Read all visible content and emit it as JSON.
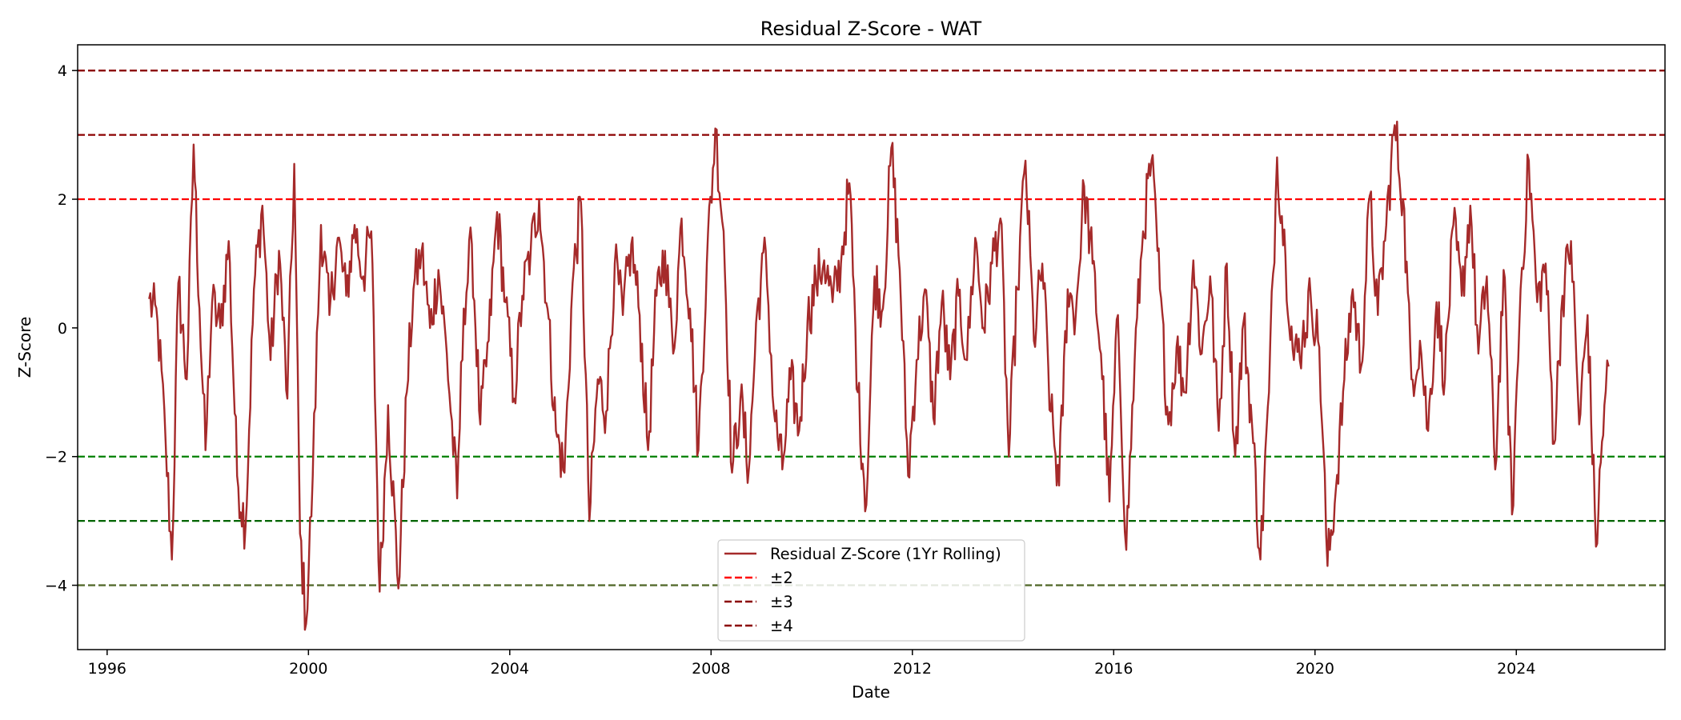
{
  "chart_data": {
    "type": "line",
    "title": "Residual Z-Score - WAT",
    "xlabel": "Date",
    "ylabel": "Z-Score",
    "xlim": [
      "1995-06-01",
      "2026-12-15"
    ],
    "ylim": [
      -5.0,
      4.4
    ],
    "x_ticks": [
      {
        "date": "1996-01-01",
        "label": "1996"
      },
      {
        "date": "2000-01-01",
        "label": "2000"
      },
      {
        "date": "2004-01-01",
        "label": "2004"
      },
      {
        "date": "2008-01-01",
        "label": "2008"
      },
      {
        "date": "2012-01-01",
        "label": "2012"
      },
      {
        "date": "2016-01-01",
        "label": "2016"
      },
      {
        "date": "2020-01-01",
        "label": "2020"
      },
      {
        "date": "2024-01-01",
        "label": "2024"
      }
    ],
    "y_ticks": [
      {
        "value": 4,
        "label": "4"
      },
      {
        "value": 2,
        "label": "2"
      },
      {
        "value": 0,
        "label": "0"
      },
      {
        "value": -2,
        "label": "−2"
      },
      {
        "value": -4,
        "label": "−4"
      }
    ],
    "grid": false,
    "legend_position": "lower-center",
    "threshold_lines": [
      {
        "value": 2,
        "color": "#ff0000",
        "legend": "±2"
      },
      {
        "value": 3,
        "color": "#8b0000",
        "legend": "±3"
      },
      {
        "value": 4,
        "color": "#8b0000",
        "legend": "±4"
      },
      {
        "value": -2,
        "color": "#008000"
      },
      {
        "value": -3,
        "color": "#006400"
      },
      {
        "value": -4,
        "color": "#556b2f"
      }
    ],
    "series": [
      {
        "name": "Residual Z-Score (1Yr Rolling)",
        "color": "#a52a2a",
        "points": [
          [
            "1996-11-01",
            0.45
          ],
          [
            "1997-01-01",
            0.1
          ],
          [
            "1997-03-01",
            -1.8
          ],
          [
            "1997-04-15",
            -3.6
          ],
          [
            "1997-06-01",
            0.7
          ],
          [
            "1997-08-01",
            -0.8
          ],
          [
            "1997-09-20",
            2.85
          ],
          [
            "1997-11-01",
            0.3
          ],
          [
            "1997-12-15",
            -1.9
          ],
          [
            "1998-02-01",
            0.4
          ],
          [
            "1998-04-01",
            0.0
          ],
          [
            "1998-06-01",
            1.35
          ],
          [
            "1998-08-01",
            -2.3
          ],
          [
            "1998-10-01",
            -3.1
          ],
          [
            "1998-12-01",
            0.6
          ],
          [
            "1999-02-01",
            1.9
          ],
          [
            "1999-04-01",
            -0.5
          ],
          [
            "1999-06-01",
            1.2
          ],
          [
            "1999-08-01",
            -1.1
          ],
          [
            "1999-09-20",
            2.55
          ],
          [
            "1999-11-01",
            -3.2
          ],
          [
            "1999-12-15",
            -4.6
          ],
          [
            "2000-02-01",
            -2.3
          ],
          [
            "2000-04-01",
            1.6
          ],
          [
            "2000-06-01",
            0.2
          ],
          [
            "2000-08-01",
            1.4
          ],
          [
            "2000-10-01",
            0.5
          ],
          [
            "2000-12-01",
            1.6
          ],
          [
            "2001-02-01",
            0.8
          ],
          [
            "2001-04-01",
            1.5
          ],
          [
            "2001-06-01",
            -4.1
          ],
          [
            "2001-08-01",
            -1.2
          ],
          [
            "2001-10-15",
            -4.05
          ],
          [
            "2001-12-15",
            -1.0
          ],
          [
            "2002-02-01",
            0.6
          ],
          [
            "2002-04-01",
            1.2
          ],
          [
            "2002-06-01",
            0.0
          ],
          [
            "2002-08-01",
            0.9
          ],
          [
            "2002-10-01",
            -0.4
          ],
          [
            "2002-12-15",
            -2.65
          ],
          [
            "2003-02-01",
            0.3
          ],
          [
            "2003-04-01",
            1.3
          ],
          [
            "2003-06-01",
            -1.5
          ],
          [
            "2003-08-01",
            -0.2
          ],
          [
            "2003-10-01",
            1.8
          ],
          [
            "2003-12-01",
            0.4
          ],
          [
            "2004-02-01",
            -1.1
          ],
          [
            "2004-04-01",
            0.5
          ],
          [
            "2004-06-01",
            1.2
          ],
          [
            "2004-08-01",
            2.0
          ],
          [
            "2004-10-01",
            0.3
          ],
          [
            "2004-12-01",
            -1.6
          ],
          [
            "2005-02-01",
            -2.25
          ],
          [
            "2005-04-01",
            0.7
          ],
          [
            "2005-06-01",
            1.95
          ],
          [
            "2005-08-01",
            -3.0
          ],
          [
            "2005-10-01",
            -0.8
          ],
          [
            "2005-12-01",
            -1.3
          ],
          [
            "2006-02-01",
            1.0
          ],
          [
            "2006-04-01",
            0.2
          ],
          [
            "2006-06-01",
            1.3
          ],
          [
            "2006-08-01",
            0.2
          ],
          [
            "2006-10-01",
            -1.9
          ],
          [
            "2006-12-01",
            0.5
          ],
          [
            "2007-02-01",
            1.2
          ],
          [
            "2007-04-01",
            -0.4
          ],
          [
            "2007-06-01",
            1.7
          ],
          [
            "2007-08-01",
            0.3
          ],
          [
            "2007-10-01",
            -1.9
          ],
          [
            "2007-12-01",
            1.0
          ],
          [
            "2008-02-01",
            3.1
          ],
          [
            "2008-04-01",
            1.5
          ],
          [
            "2008-06-01",
            -2.25
          ],
          [
            "2008-08-01",
            -1.1
          ],
          [
            "2008-10-01",
            -2.2
          ],
          [
            "2008-12-01",
            0.3
          ],
          [
            "2009-02-01",
            1.2
          ],
          [
            "2009-04-01",
            -1.3
          ],
          [
            "2009-06-01",
            -2.2
          ],
          [
            "2009-08-01",
            -0.8
          ],
          [
            "2009-10-01",
            -1.6
          ],
          [
            "2009-12-01",
            0.1
          ],
          [
            "2010-02-01",
            0.7
          ],
          [
            "2010-04-01",
            1.05
          ],
          [
            "2010-06-01",
            0.4
          ],
          [
            "2010-08-01",
            1.0
          ],
          [
            "2010-10-01",
            2.25
          ],
          [
            "2010-12-01",
            -1.0
          ],
          [
            "2011-02-01",
            -2.75
          ],
          [
            "2011-04-01",
            0.8
          ],
          [
            "2011-06-01",
            0.3
          ],
          [
            "2011-08-01",
            2.8
          ],
          [
            "2011-10-01",
            0.9
          ],
          [
            "2011-12-01",
            -2.3
          ],
          [
            "2012-02-01",
            -0.5
          ],
          [
            "2012-04-01",
            0.6
          ],
          [
            "2012-06-01",
            -1.4
          ],
          [
            "2012-08-01",
            0.4
          ],
          [
            "2012-10-01",
            -0.8
          ],
          [
            "2012-12-01",
            0.5
          ],
          [
            "2013-02-01",
            -0.5
          ],
          [
            "2013-04-01",
            1.4
          ],
          [
            "2013-06-01",
            0.0
          ],
          [
            "2013-08-01",
            1.0
          ],
          [
            "2013-10-01",
            1.7
          ],
          [
            "2013-12-01",
            -2.0
          ],
          [
            "2014-02-01",
            0.6
          ],
          [
            "2014-04-01",
            2.6
          ],
          [
            "2014-06-01",
            -0.2
          ],
          [
            "2014-08-01",
            1.0
          ],
          [
            "2014-10-01",
            -1.3
          ],
          [
            "2014-12-01",
            -2.45
          ],
          [
            "2015-02-01",
            0.6
          ],
          [
            "2015-04-01",
            0.2
          ],
          [
            "2015-06-01",
            2.2
          ],
          [
            "2015-08-01",
            1.0
          ],
          [
            "2015-10-01",
            -0.4
          ],
          [
            "2015-12-01",
            -2.7
          ],
          [
            "2016-02-01",
            0.2
          ],
          [
            "2016-04-01",
            -3.45
          ],
          [
            "2016-06-01",
            -0.5
          ],
          [
            "2016-08-01",
            1.5
          ],
          [
            "2016-10-01",
            2.6
          ],
          [
            "2016-12-01",
            0.6
          ],
          [
            "2017-02-01",
            -1.5
          ],
          [
            "2017-04-01",
            -0.3
          ],
          [
            "2017-06-01",
            -1.0
          ],
          [
            "2017-08-01",
            1.05
          ],
          [
            "2017-10-01",
            -0.4
          ],
          [
            "2017-12-01",
            0.8
          ],
          [
            "2018-02-01",
            -1.6
          ],
          [
            "2018-04-01",
            1.0
          ],
          [
            "2018-06-01",
            -2.0
          ],
          [
            "2018-08-01",
            0.1
          ],
          [
            "2018-10-01",
            -1.5
          ],
          [
            "2018-12-01",
            -3.6
          ],
          [
            "2019-02-01",
            -1.0
          ],
          [
            "2019-04-01",
            2.65
          ],
          [
            "2019-06-01",
            1.1
          ],
          [
            "2019-08-01",
            -0.5
          ],
          [
            "2019-10-01",
            -0.2
          ],
          [
            "2019-12-01",
            0.5
          ],
          [
            "2020-02-01",
            -0.3
          ],
          [
            "2020-04-01",
            -3.7
          ],
          [
            "2020-06-01",
            -2.5
          ],
          [
            "2020-08-01",
            -0.8
          ],
          [
            "2020-10-01",
            0.6
          ],
          [
            "2020-12-01",
            -0.6
          ],
          [
            "2021-02-01",
            2.05
          ],
          [
            "2021-04-01",
            0.2
          ],
          [
            "2021-06-01",
            1.6
          ],
          [
            "2021-08-01",
            3.15
          ],
          [
            "2021-10-01",
            2.0
          ],
          [
            "2021-12-01",
            -0.8
          ],
          [
            "2022-02-01",
            -0.2
          ],
          [
            "2022-04-01",
            -1.6
          ],
          [
            "2022-06-01",
            0.4
          ],
          [
            "2022-08-01",
            -0.8
          ],
          [
            "2022-10-01",
            1.6
          ],
          [
            "2022-12-01",
            0.5
          ],
          [
            "2023-02-01",
            1.9
          ],
          [
            "2023-04-01",
            -0.4
          ],
          [
            "2023-06-01",
            0.8
          ],
          [
            "2023-08-01",
            -2.2
          ],
          [
            "2023-10-01",
            0.9
          ],
          [
            "2023-12-01",
            -2.9
          ],
          [
            "2024-02-01",
            0.6
          ],
          [
            "2024-04-01",
            2.6
          ],
          [
            "2024-06-01",
            0.4
          ],
          [
            "2024-08-01",
            1.0
          ],
          [
            "2024-10-01",
            -1.8
          ],
          [
            "2024-12-01",
            0.5
          ],
          [
            "2025-02-01",
            1.35
          ],
          [
            "2025-04-01",
            -1.5
          ],
          [
            "2025-06-01",
            0.2
          ],
          [
            "2025-08-01",
            -3.4
          ],
          [
            "2025-10-01",
            -1.2
          ],
          [
            "2025-11-01",
            -0.6
          ]
        ]
      }
    ]
  }
}
